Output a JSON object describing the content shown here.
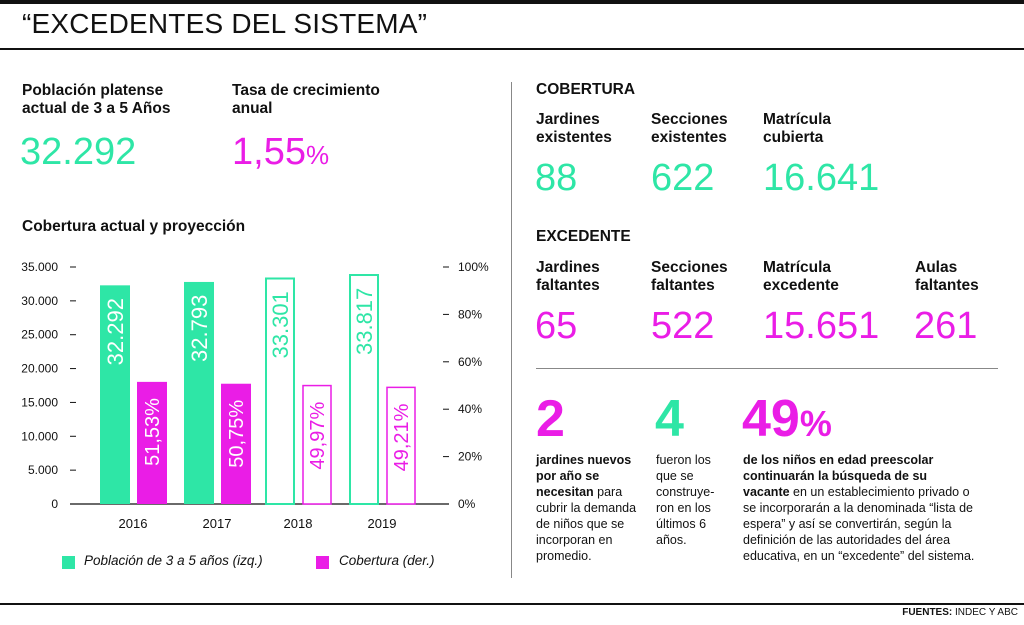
{
  "header": {
    "title": "“EXCEDENTES DEL SISTEMA”"
  },
  "poblacion": {
    "label_line1": "Población platense",
    "label_line2": "actual de 3 a 5 Años",
    "value": "32.292"
  },
  "tasa": {
    "label_line1": "Tasa de crecimiento",
    "label_line2": "anual",
    "value": "1,55",
    "unit": "%"
  },
  "chart_title": "Cobertura actual y proyección",
  "chart_data": {
    "type": "bar",
    "title": "Cobertura actual y proyección",
    "categories": [
      "2016",
      "2017",
      "2018",
      "2019"
    ],
    "series": [
      {
        "name": "Población de 3 a 5 años (izq.)",
        "axis": "left",
        "values": [
          32292,
          32793,
          33301,
          33817
        ],
        "labels": [
          "32.292",
          "32.793",
          "33.301",
          "33.817"
        ],
        "color": "#2ee6a6",
        "projected": [
          false,
          false,
          true,
          true
        ]
      },
      {
        "name": "Cobertura (der.)",
        "axis": "right",
        "values": [
          51.53,
          50.75,
          49.97,
          49.21
        ],
        "labels": [
          "51,53%",
          "50,75%",
          "49,97%",
          "49,21%"
        ],
        "color": "#ea1de6",
        "projected": [
          false,
          false,
          true,
          true
        ]
      }
    ],
    "left_ylim": [
      0,
      35000
    ],
    "left_ticks": [
      "0",
      "5.000",
      "10.000",
      "15.000",
      "20.000",
      "25.000",
      "30.000",
      "35.000"
    ],
    "right_ylim": [
      0,
      100
    ],
    "right_ticks": [
      "0%",
      "20%",
      "40%",
      "60%",
      "80%",
      "100%"
    ],
    "legend_placement": "bottom"
  },
  "legend": {
    "green": "Población de 3 a 5 años (izq.)",
    "magenta": "Cobertura (der.)"
  },
  "cobertura": {
    "heading": "COBERTURA",
    "items": [
      {
        "l1": "Jardines",
        "l2": "existentes",
        "value": "88"
      },
      {
        "l1": "Secciones",
        "l2": "existentes",
        "value": "622"
      },
      {
        "l1": "Matrícula",
        "l2": "cubierta",
        "value": "16.641"
      }
    ]
  },
  "excedente": {
    "heading": "EXCEDENTE",
    "items": [
      {
        "l1": "Jardines",
        "l2": "faltantes",
        "value": "65"
      },
      {
        "l1": "Secciones",
        "l2": "faltantes",
        "value": "522"
      },
      {
        "l1": "Matrícula",
        "l2": "excedente",
        "value": "15.651"
      },
      {
        "l1": "Aulas",
        "l2": "faltantes",
        "value": "261"
      }
    ]
  },
  "facts": [
    {
      "number": "2",
      "bold": [
        "jardines nuevos",
        "por año se",
        "necesitan"
      ],
      "lines": [
        "para",
        "cubrir la demanda",
        "de niños que se",
        "incorporan en",
        "promedio."
      ]
    },
    {
      "number": "4",
      "lines": [
        "fueron los",
        "que se",
        "construye-",
        "ron en los",
        "últimos 6",
        "años."
      ]
    },
    {
      "number": "49",
      "unit": "%",
      "bold": [
        "de los niños en edad preescolar",
        "continuarán la búsqueda de su",
        "vacante"
      ],
      "lines": [
        "en un establecimiento privado o",
        "se incorporarán a la denominada “lista de",
        "espera” y así se convertirán, según la",
        "definición de las autoridades del área",
        "educativa, en un “excedente” del sistema."
      ]
    }
  ],
  "footer": {
    "label": "FUENTES:",
    "text": "INDEC Y ABC"
  },
  "colors": {
    "green": "#2ee6a6",
    "magenta": "#ea1de6",
    "text": "#111111"
  }
}
